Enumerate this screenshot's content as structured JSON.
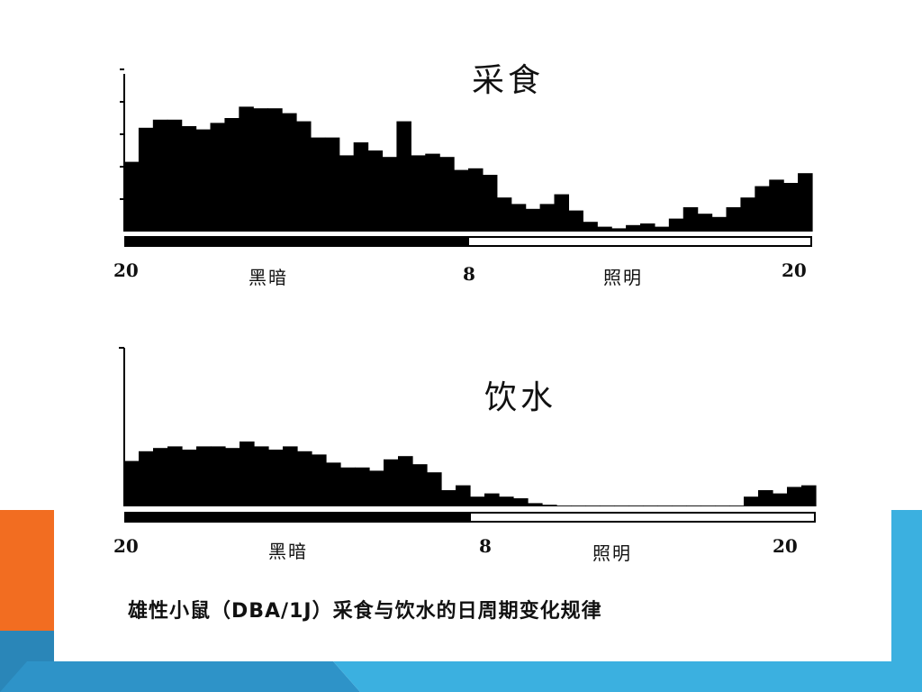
{
  "slide": {
    "caption": "雄性小鼠（DBA/1J）采食与饮水的日周期变化规律",
    "colors": {
      "accent_orange": "#F26D21",
      "accent_blue": "#3BB0E0",
      "dark_blue": "#2A86B8",
      "bars": "#000000",
      "bg": "#ffffff"
    }
  },
  "chart_data": [
    {
      "type": "bar",
      "title": "采食",
      "x_tick_labels": [
        "20",
        "8",
        "20"
      ],
      "phase_labels": [
        "黑暗",
        "照明"
      ],
      "x": [
        20,
        20.5,
        21,
        21.5,
        22,
        22.5,
        23,
        23.5,
        24,
        24.5,
        25,
        25.5,
        26,
        26.5,
        27,
        27.5,
        28,
        28.5,
        29,
        29.5,
        30,
        30.5,
        31,
        31.5,
        32,
        32.5,
        33,
        33.5,
        34,
        34.5,
        35,
        35.5,
        36,
        36.5,
        37,
        37.5,
        38,
        38.5,
        39,
        39.5,
        40,
        40.5,
        41,
        41.5,
        42,
        42.5,
        43,
        43.5
      ],
      "values": [
        4.3,
        6.4,
        6.9,
        6.9,
        6.5,
        6.3,
        6.7,
        7.0,
        7.7,
        7.6,
        7.6,
        7.3,
        6.8,
        5.8,
        5.8,
        4.7,
        5.5,
        5.0,
        4.6,
        6.8,
        4.7,
        4.8,
        4.6,
        3.8,
        3.9,
        3.5,
        2.1,
        1.7,
        1.4,
        1.7,
        2.3,
        1.3,
        0.6,
        0.3,
        0.2,
        0.4,
        0.5,
        0.3,
        0.8,
        1.5,
        1.1,
        0.9,
        1.5,
        2.1,
        2.8,
        3.2,
        3.0,
        3.6
      ],
      "ylim": [
        0,
        10
      ],
      "xlim": [
        20,
        44
      ],
      "light_phase": [
        {
          "from": 20,
          "to": 32,
          "state": "dark"
        },
        {
          "from": 32,
          "to": 44,
          "state": "light"
        }
      ]
    },
    {
      "type": "bar",
      "title": "饮水",
      "x_tick_labels": [
        "20",
        "8",
        "20"
      ],
      "phase_labels": [
        "黑暗",
        "照明"
      ],
      "x": [
        20,
        20.5,
        21,
        21.5,
        22,
        22.5,
        23,
        23.5,
        24,
        24.5,
        25,
        25.5,
        26,
        26.5,
        27,
        27.5,
        28,
        28.5,
        29,
        29.5,
        30,
        30.5,
        31,
        31.5,
        32,
        32.5,
        33,
        33.5,
        34,
        34.5,
        35,
        35.5,
        36,
        36.5,
        37,
        37.5,
        38,
        38.5,
        39,
        39.5,
        40,
        40.5,
        41,
        41.5,
        42,
        42.5,
        43,
        43.5
      ],
      "values": [
        2.8,
        3.4,
        3.6,
        3.7,
        3.5,
        3.7,
        3.7,
        3.6,
        4.0,
        3.7,
        3.5,
        3.7,
        3.4,
        3.2,
        2.7,
        2.4,
        2.4,
        2.2,
        2.9,
        3.1,
        2.6,
        2.1,
        1.0,
        1.3,
        0.6,
        0.8,
        0.6,
        0.5,
        0.2,
        0.1,
        0.05,
        0.05,
        0.05,
        0.05,
        0.05,
        0.05,
        0.05,
        0.05,
        0.05,
        0.05,
        0.05,
        0.05,
        0.05,
        0.6,
        1.0,
        0.8,
        1.2,
        1.3
      ],
      "ylim": [
        0,
        10
      ],
      "xlim": [
        20,
        44
      ],
      "light_phase": [
        {
          "from": 20,
          "to": 32,
          "state": "dark"
        },
        {
          "from": 32,
          "to": 44,
          "state": "light"
        }
      ]
    }
  ]
}
